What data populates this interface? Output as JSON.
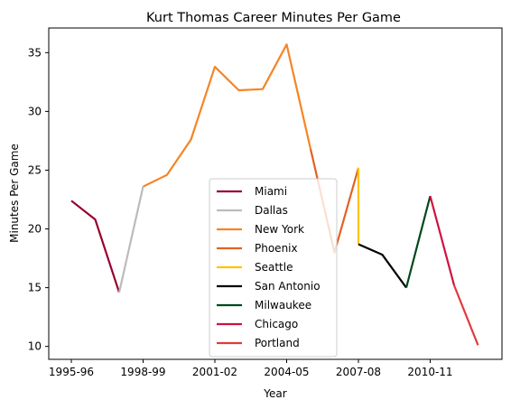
{
  "chart_data": {
    "type": "line",
    "title": "Kurt Thomas  Career Minutes Per Game",
    "xlabel": "Year",
    "ylabel": "Minutes Per Game",
    "x_ticks": [
      "1995-96",
      "1998-99",
      "2001-02",
      "2004-05",
      "2007-08",
      "2010-11"
    ],
    "y_ticks": [
      10,
      15,
      20,
      25,
      30,
      35
    ],
    "ylim": [
      8.9,
      37.1
    ],
    "grid": false,
    "legend_position": "lower center",
    "series": [
      {
        "name": "Miami",
        "color": "#98002E",
        "points": [
          [
            "1995-96",
            22.4
          ],
          [
            "1996-97",
            20.8
          ],
          [
            "1997-98",
            14.6
          ]
        ]
      },
      {
        "name": "Dallas",
        "color": "#BBBBBB",
        "points": [
          [
            "1997-98",
            14.6
          ],
          [
            "1998-99",
            23.6
          ]
        ]
      },
      {
        "name": "New York",
        "color": "#F58426",
        "points": [
          [
            "1998-99",
            23.6
          ],
          [
            "1999-00",
            24.6
          ],
          [
            "2000-01",
            27.6
          ],
          [
            "2001-02",
            33.8
          ],
          [
            "2002-03",
            31.8
          ],
          [
            "2003-04",
            31.9
          ],
          [
            "2004-05",
            35.7
          ],
          [
            "2005-06",
            26.8
          ]
        ]
      },
      {
        "name": "Phoenix",
        "color": "#E56020",
        "points": [
          [
            "2005-06",
            26.8
          ],
          [
            "2006-07",
            18.0
          ],
          [
            "2007-08",
            25.2
          ]
        ]
      },
      {
        "name": "Seattle",
        "color": "#FFC200",
        "points": [
          [
            "2007-08",
            25.2
          ],
          [
            "2007-08",
            18.7
          ]
        ]
      },
      {
        "name": "San Antonio",
        "color": "#000000",
        "points": [
          [
            "2007-08",
            18.7
          ],
          [
            "2008-09",
            17.8
          ],
          [
            "2009-10",
            15.0
          ]
        ]
      },
      {
        "name": "Milwaukee",
        "color": "#00471B",
        "points": [
          [
            "2009-10",
            15.0
          ],
          [
            "2010-11",
            22.8
          ]
        ]
      },
      {
        "name": "Chicago",
        "color": "#CE1141",
        "points": [
          [
            "2010-11",
            22.8
          ],
          [
            "2011-12",
            15.2
          ]
        ]
      },
      {
        "name": "Portland",
        "color": "#E03A3E",
        "points": [
          [
            "2011-12",
            15.2
          ],
          [
            "2012-13",
            10.1
          ]
        ]
      }
    ]
  }
}
